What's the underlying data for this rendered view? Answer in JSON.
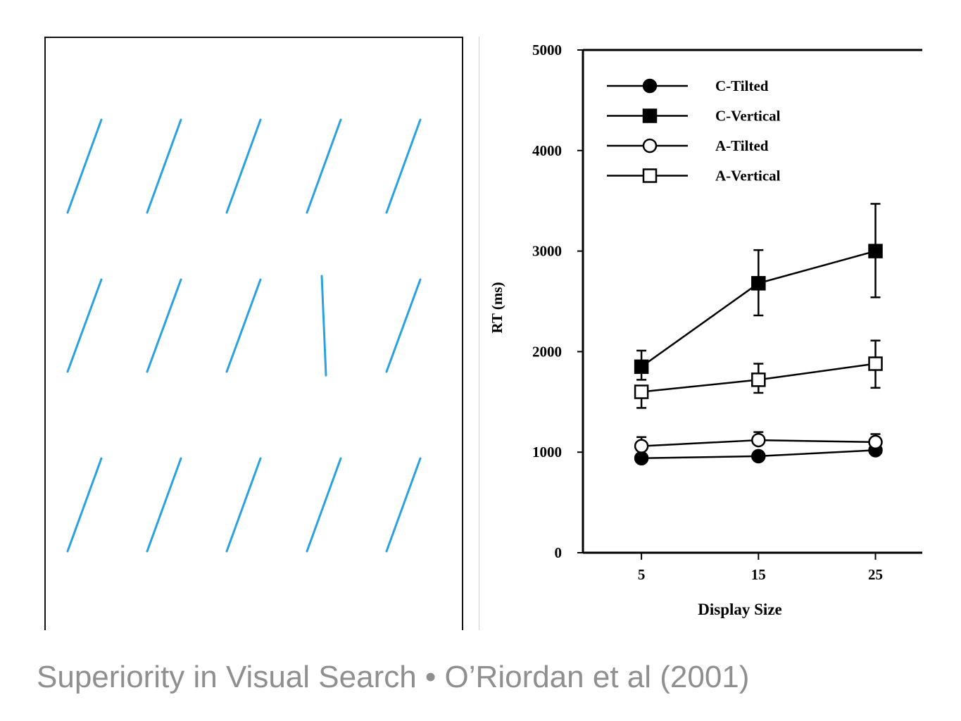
{
  "caption": "Superiority in Visual Search • O’Riordan et al (2001)",
  "stimulus": {
    "rows": 3,
    "cols": 5,
    "distractor": "tilted",
    "target": "vertical",
    "target_position": {
      "row": 2,
      "col": 4
    },
    "line_color": "#2aa1e0"
  },
  "chart_data": {
    "type": "line",
    "xlabel": "Display Size",
    "ylabel": "RT (ms)",
    "x": [
      5,
      15,
      25
    ],
    "x_ticks": [
      "5",
      "15",
      "25"
    ],
    "xlim": [
      0,
      29
    ],
    "ylim": [
      0,
      5000
    ],
    "y_ticks": [
      "0",
      "1000",
      "2000",
      "3000",
      "4000",
      "5000"
    ],
    "legend_position": "top-left",
    "series": [
      {
        "name": "C-Tilted",
        "marker": "filled-circle",
        "values": [
          940,
          960,
          1020
        ],
        "err_low": [
          null,
          null,
          null
        ],
        "err_high": [
          null,
          null,
          null
        ]
      },
      {
        "name": "C-Vertical",
        "marker": "filled-square",
        "values": [
          1850,
          2680,
          3000
        ],
        "err_low": [
          1720,
          2360,
          2540
        ],
        "err_high": [
          2010,
          3010,
          3470
        ]
      },
      {
        "name": "A-Tilted",
        "marker": "open-circle",
        "values": [
          1060,
          1120,
          1100
        ],
        "err_low": [
          null,
          null,
          null
        ],
        "err_high": [
          1150,
          1200,
          1180
        ]
      },
      {
        "name": "A-Vertical",
        "marker": "open-square",
        "values": [
          1600,
          1720,
          1880
        ],
        "err_low": [
          1440,
          1590,
          1640
        ],
        "err_high": [
          null,
          1880,
          2110
        ]
      }
    ]
  }
}
